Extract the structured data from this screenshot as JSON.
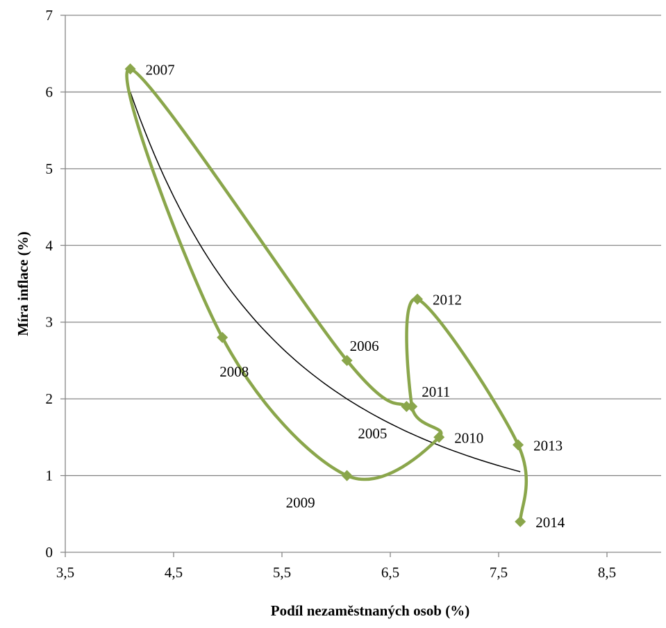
{
  "chart_data": {
    "type": "scatter",
    "title": "",
    "xlabel": "Podíl nezaměstnaných osob (%)",
    "ylabel": "Míra inflace (%)",
    "xlim": [
      3.5,
      9.0
    ],
    "ylim": [
      0,
      7
    ],
    "x_ticks": [
      "3,5",
      "4,5",
      "5,5",
      "6,5",
      "7,5",
      "8,5"
    ],
    "y_ticks": [
      "0",
      "1",
      "2",
      "3",
      "4",
      "5",
      "6",
      "7"
    ],
    "grid": "horizontal",
    "legend": "none",
    "series": [
      {
        "connect": "smooth-line",
        "color": "#8AA64B",
        "points": [
          {
            "label": "2005",
            "x": 6.65,
            "y": 1.9,
            "label_pos": "below-left"
          },
          {
            "label": "2006",
            "x": 6.1,
            "y": 2.5,
            "label_pos": "above-right"
          },
          {
            "label": "2007",
            "x": 4.1,
            "y": 6.3,
            "label_pos": "right"
          },
          {
            "label": "2008",
            "x": 4.95,
            "y": 2.8,
            "label_pos": "below-right"
          },
          {
            "label": "2009",
            "x": 6.1,
            "y": 1.0,
            "label_pos": "below-left"
          },
          {
            "label": "2010",
            "x": 6.95,
            "y": 1.5,
            "label_pos": "right"
          },
          {
            "label": "2011",
            "x": 6.7,
            "y": 1.9,
            "label_pos": "above-right"
          },
          {
            "label": "2012",
            "x": 6.75,
            "y": 3.3,
            "label_pos": "right"
          },
          {
            "label": "2013",
            "x": 7.68,
            "y": 1.4,
            "label_pos": "right"
          },
          {
            "label": "2014",
            "x": 7.7,
            "y": 0.4,
            "label_pos": "right"
          }
        ]
      }
    ],
    "trendline": {
      "type": "power",
      "color": "#000000",
      "x_start": 4.1,
      "x_end": 7.7,
      "y_start": 6.0,
      "y_end": 1.05
    }
  }
}
